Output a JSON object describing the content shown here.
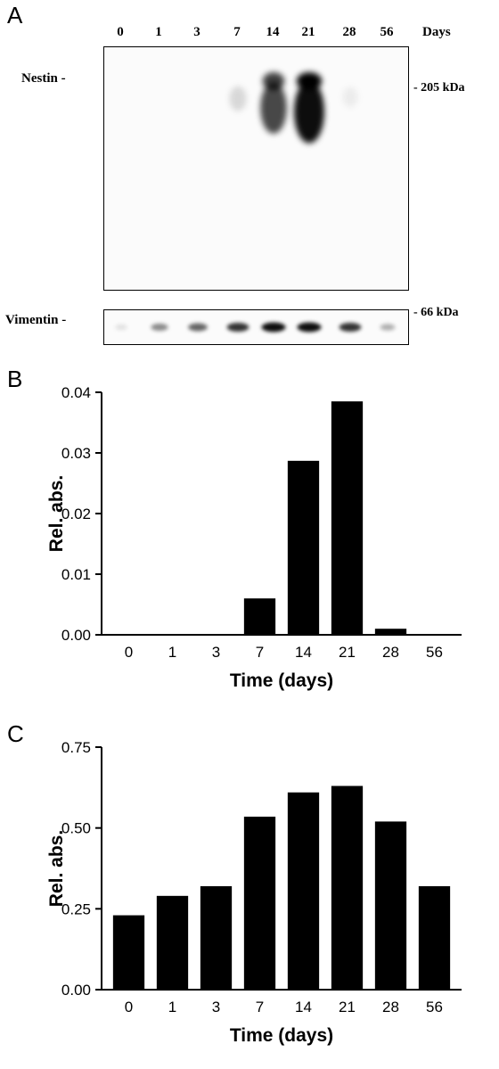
{
  "panel_a": {
    "letter": "A",
    "lanes": [
      "0",
      "1",
      "3",
      "7",
      "14",
      "21",
      "28",
      "56"
    ],
    "lanes_unit": "Days",
    "nestin_label": "Nestin -",
    "nestin_marker": "- 205 kDa",
    "vimentin_label": "Vimentin -",
    "vimentin_marker": "- 66 kDa",
    "nestin_intensity": [
      0,
      0,
      0,
      0.15,
      0.75,
      1.0,
      0.06,
      0
    ],
    "vimentin_intensity": [
      0.1,
      0.45,
      0.6,
      0.8,
      0.95,
      0.95,
      0.8,
      0.3
    ]
  },
  "chart_data": [
    {
      "panel": "B",
      "type": "bar",
      "categories": [
        "0",
        "1",
        "3",
        "7",
        "14",
        "21",
        "28",
        "56"
      ],
      "values": [
        0,
        0,
        0,
        0.006,
        0.0287,
        0.0385,
        0.001,
        0
      ],
      "xlabel": "Time (days)",
      "ylabel": "Rel. abs.",
      "ylim": [
        0,
        0.04
      ],
      "yticks": [
        "0.00",
        "0.01",
        "0.02",
        "0.03",
        "0.04"
      ],
      "bar_color": "#000000",
      "grid": false
    },
    {
      "panel": "C",
      "type": "bar",
      "categories": [
        "0",
        "1",
        "3",
        "7",
        "14",
        "21",
        "28",
        "56"
      ],
      "values": [
        0.23,
        0.29,
        0.32,
        0.535,
        0.61,
        0.63,
        0.52,
        0.32
      ],
      "xlabel": "Time (days)",
      "ylabel": "Rel. abs.",
      "ylim": [
        0,
        0.75
      ],
      "yticks": [
        "0.00",
        "0.25",
        "0.50",
        "0.75"
      ],
      "bar_color": "#000000",
      "grid": false
    }
  ]
}
